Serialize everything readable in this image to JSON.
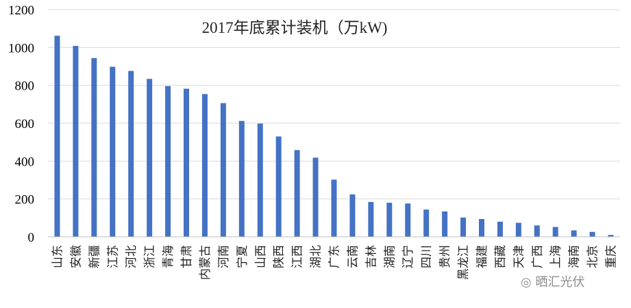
{
  "chart_data": {
    "type": "bar",
    "title": "2017年底累计装机（万kW)",
    "xlabel": "",
    "ylabel": "",
    "ylim": [
      0,
      1200
    ],
    "yticks": [
      0,
      200,
      400,
      600,
      800,
      1000,
      1200
    ],
    "grid": true,
    "legend": "none",
    "bar_color": "#4472C4",
    "categories": [
      "山东",
      "安徽",
      "新疆",
      "江苏",
      "河北",
      "浙江",
      "青海",
      "甘肃",
      "内蒙古",
      "河南",
      "宁夏",
      "山西",
      "陕西",
      "江西",
      "湖北",
      "广东",
      "云南",
      "吉林",
      "湖南",
      "辽宁",
      "四川",
      "贵州",
      "黑龙江",
      "福建",
      "西藏",
      "天津",
      "广西",
      "上海",
      "海南",
      "北京",
      "重庆"
    ],
    "values": [
      1062,
      1008,
      944,
      898,
      876,
      834,
      796,
      782,
      754,
      706,
      612,
      598,
      530,
      458,
      418,
      302,
      224,
      184,
      180,
      176,
      144,
      134,
      102,
      94,
      80,
      74,
      60,
      52,
      34,
      26,
      10
    ]
  },
  "watermark": {
    "text": "晒汇光伏",
    "icon": "wechat-icon"
  }
}
